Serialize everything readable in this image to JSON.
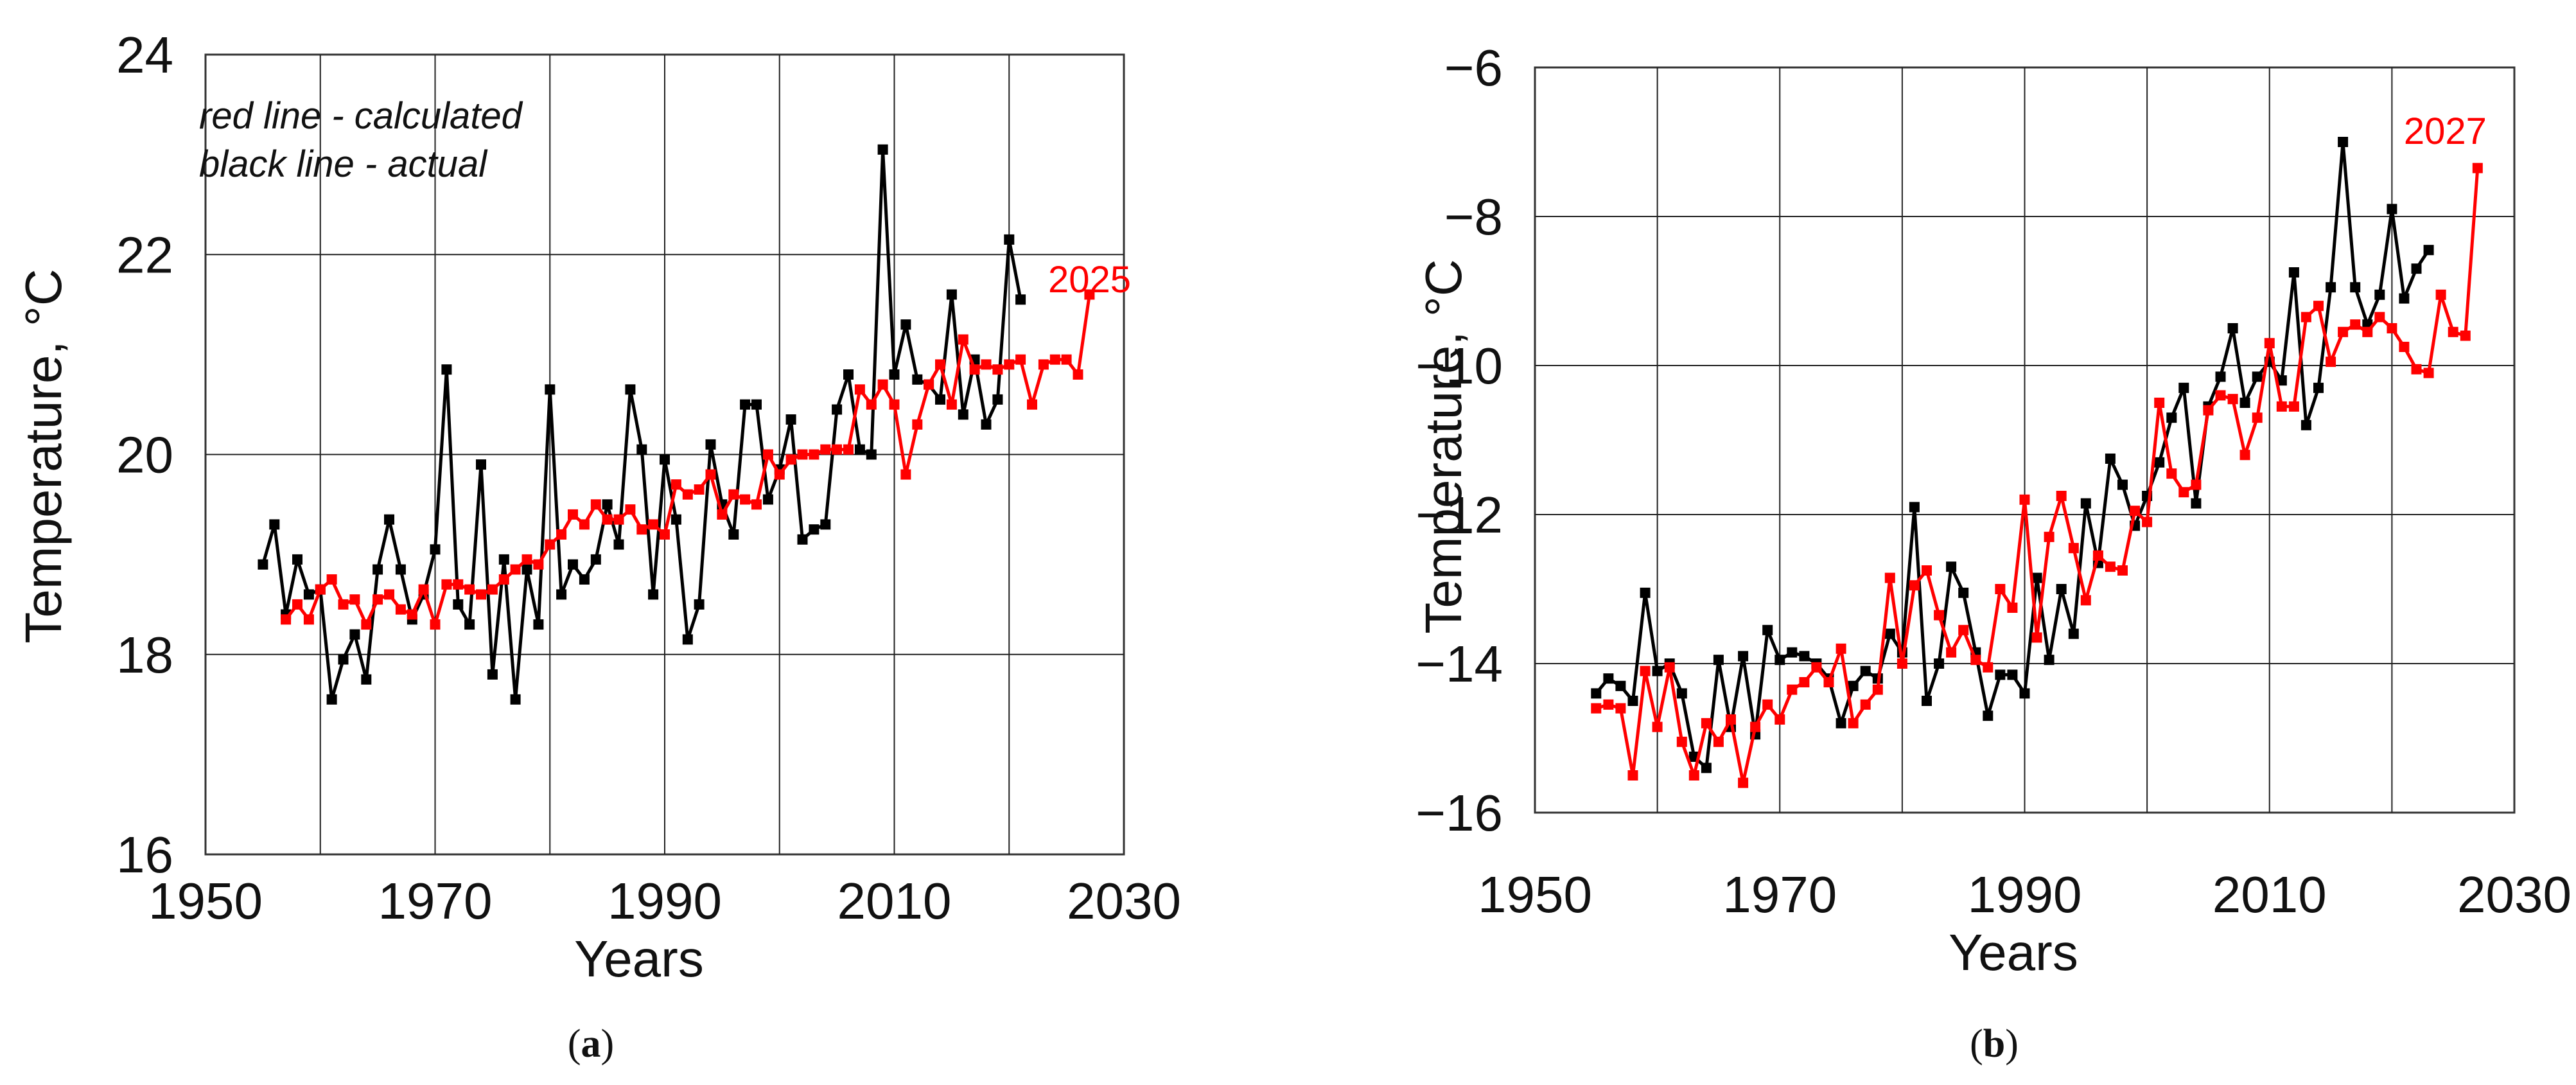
{
  "colors": {
    "calculated": "#ff0000",
    "actual": "#000000"
  },
  "chart_data": [
    {
      "type": "line",
      "panel": "a",
      "panel_label": "(a)",
      "title": "",
      "xlabel": "Years",
      "ylabel": "Temperature, °C",
      "xlim": [
        1950,
        2030
      ],
      "ylim": [
        16,
        24
      ],
      "xticks": [
        1950,
        1970,
        1990,
        2010,
        2030
      ],
      "yticks": [
        16,
        18,
        20,
        22,
        24
      ],
      "xgrid": [
        1960,
        1970,
        1980,
        1990,
        2000,
        2010,
        2020
      ],
      "ygrid": [
        18,
        20,
        22
      ],
      "annotation_lines": [
        "red line - calculated",
        "black line - actual"
      ],
      "end_label": "2025",
      "series": [
        {
          "name": "actual",
          "color": "#000000",
          "x": [
            1955,
            1956,
            1957,
            1958,
            1959,
            1960,
            1961,
            1962,
            1963,
            1964,
            1965,
            1966,
            1967,
            1968,
            1969,
            1970,
            1971,
            1972,
            1973,
            1974,
            1975,
            1976,
            1977,
            1978,
            1979,
            1980,
            1981,
            1982,
            1983,
            1984,
            1985,
            1986,
            1987,
            1988,
            1989,
            1990,
            1991,
            1992,
            1993,
            1994,
            1995,
            1996,
            1997,
            1998,
            1999,
            2000,
            2001,
            2002,
            2003,
            2004,
            2005,
            2006,
            2007,
            2008,
            2009,
            2010,
            2011,
            2012,
            2013,
            2014,
            2015,
            2016,
            2017,
            2018,
            2019,
            2020,
            2021,
            2022
          ],
          "y": [
            18.9,
            19.3,
            18.4,
            18.95,
            18.6,
            18.65,
            17.55,
            17.95,
            18.2,
            17.75,
            18.85,
            19.35,
            18.85,
            18.35,
            18.6,
            19.05,
            20.85,
            18.5,
            18.3,
            19.9,
            17.8,
            18.95,
            17.55,
            18.85,
            18.3,
            20.65,
            18.6,
            18.9,
            18.75,
            18.95,
            19.5,
            19.1,
            20.65,
            20.05,
            18.6,
            19.95,
            19.35,
            18.15,
            18.5,
            20.1,
            19.5,
            19.2,
            20.5,
            20.5,
            19.55,
            19.85,
            20.35,
            19.15,
            19.25,
            19.3,
            20.45,
            20.8,
            20.05,
            20.0,
            23.05,
            20.8,
            21.3,
            20.75,
            20.7,
            20.55,
            21.6,
            20.4,
            20.95,
            20.3,
            20.55,
            22.15,
            21.55,
            null
          ]
        },
        {
          "name": "calculated",
          "color": "#ff0000",
          "x": [
            1957,
            1958,
            1959,
            1960,
            1961,
            1962,
            1963,
            1964,
            1965,
            1966,
            1967,
            1968,
            1969,
            1970,
            1971,
            1972,
            1973,
            1974,
            1975,
            1976,
            1977,
            1978,
            1979,
            1980,
            1981,
            1982,
            1983,
            1984,
            1985,
            1986,
            1987,
            1988,
            1989,
            1990,
            1991,
            1992,
            1993,
            1994,
            1995,
            1996,
            1997,
            1998,
            1999,
            2000,
            2001,
            2002,
            2003,
            2004,
            2005,
            2006,
            2007,
            2008,
            2009,
            2010,
            2011,
            2012,
            2013,
            2014,
            2015,
            2016,
            2017,
            2018,
            2019,
            2020,
            2021,
            2022,
            2023,
            2024,
            2025,
            2026,
            2027
          ],
          "y": [
            18.35,
            18.5,
            18.35,
            18.65,
            18.75,
            18.5,
            18.55,
            18.3,
            18.55,
            18.6,
            18.45,
            18.4,
            18.65,
            18.3,
            18.7,
            18.7,
            18.65,
            18.6,
            18.65,
            18.75,
            18.85,
            18.95,
            18.9,
            19.1,
            19.2,
            19.4,
            19.3,
            19.5,
            19.35,
            19.35,
            19.45,
            19.25,
            19.3,
            19.2,
            19.7,
            19.6,
            19.65,
            19.8,
            19.4,
            19.6,
            19.55,
            19.5,
            20.0,
            19.8,
            19.95,
            20.0,
            20.0,
            20.05,
            20.05,
            20.05,
            20.65,
            20.5,
            20.7,
            20.5,
            19.8,
            20.3,
            20.7,
            20.9,
            20.5,
            21.15,
            20.85,
            20.9,
            20.85,
            20.9,
            20.95,
            20.5,
            20.9,
            20.95,
            20.95,
            20.8,
            21.6
          ]
        }
      ]
    },
    {
      "type": "line",
      "panel": "b",
      "panel_label": "(b)",
      "title": "",
      "xlabel": "Years",
      "ylabel": "Temperature, °C",
      "xlim": [
        1950,
        2030
      ],
      "ylim": [
        -16,
        -6
      ],
      "xticks": [
        1950,
        1970,
        1990,
        2010,
        2030
      ],
      "yticks": [
        -16,
        -14,
        -12,
        -10,
        -8,
        -6
      ],
      "xgrid": [
        1960,
        1970,
        1980,
        1990,
        2000,
        2010,
        2020
      ],
      "ygrid": [
        -14,
        -12,
        -10,
        -8
      ],
      "annotation_lines": [],
      "end_label": "2027",
      "series": [
        {
          "name": "actual",
          "color": "#000000",
          "x": [
            1955,
            1956,
            1957,
            1958,
            1959,
            1960,
            1961,
            1962,
            1963,
            1964,
            1965,
            1966,
            1967,
            1968,
            1969,
            1970,
            1971,
            1972,
            1973,
            1974,
            1975,
            1976,
            1977,
            1978,
            1979,
            1980,
            1981,
            1982,
            1983,
            1984,
            1985,
            1986,
            1987,
            1988,
            1989,
            1990,
            1991,
            1992,
            1993,
            1994,
            1995,
            1996,
            1997,
            1998,
            1999,
            2000,
            2001,
            2002,
            2003,
            2004,
            2005,
            2006,
            2007,
            2008,
            2009,
            2010,
            2011,
            2012,
            2013,
            2014,
            2015,
            2016,
            2017,
            2018,
            2019,
            2020,
            2021,
            2022,
            2023
          ],
          "y": [
            -14.4,
            -14.2,
            -14.3,
            -14.5,
            -13.05,
            -14.1,
            -14.0,
            -14.4,
            -15.25,
            -15.4,
            -13.95,
            -14.85,
            -13.9,
            -14.95,
            -13.55,
            -13.95,
            -13.85,
            -13.9,
            -14.0,
            -14.2,
            -14.8,
            -14.3,
            -14.1,
            -14.2,
            -13.6,
            -13.85,
            -11.9,
            -14.5,
            -14.0,
            -12.7,
            -13.05,
            -13.85,
            -14.7,
            -14.15,
            -14.15,
            -14.4,
            -12.85,
            -13.95,
            -13.0,
            -13.6,
            -11.85,
            -12.65,
            -11.25,
            -11.6,
            -12.15,
            -11.75,
            -11.3,
            -10.7,
            -10.3,
            -11.85,
            -10.55,
            -10.15,
            -9.5,
            -10.5,
            -10.15,
            -9.95,
            -10.2,
            -8.75,
            -10.8,
            -10.3,
            -8.95,
            -7.0,
            -8.95,
            -9.45,
            -9.05,
            -7.9,
            -9.1,
            -8.7,
            -8.45
          ]
        },
        {
          "name": "calculated",
          "color": "#ff0000",
          "x": [
            1955,
            1956,
            1957,
            1958,
            1959,
            1960,
            1961,
            1962,
            1963,
            1964,
            1965,
            1966,
            1967,
            1968,
            1969,
            1970,
            1971,
            1972,
            1973,
            1974,
            1975,
            1976,
            1977,
            1978,
            1979,
            1980,
            1981,
            1982,
            1983,
            1984,
            1985,
            1986,
            1987,
            1988,
            1989,
            1990,
            1991,
            1992,
            1993,
            1994,
            1995,
            1996,
            1997,
            1998,
            1999,
            2000,
            2001,
            2002,
            2003,
            2004,
            2005,
            2006,
            2007,
            2008,
            2009,
            2010,
            2011,
            2012,
            2013,
            2014,
            2015,
            2016,
            2017,
            2018,
            2019,
            2020,
            2021,
            2022,
            2023,
            2024,
            2025,
            2026,
            2027
          ],
          "y": [
            -14.6,
            -14.55,
            -14.6,
            -15.5,
            -14.1,
            -14.85,
            -14.05,
            -15.05,
            -15.5,
            -14.8,
            -15.05,
            -14.75,
            -15.6,
            -14.85,
            -14.55,
            -14.75,
            -14.35,
            -14.25,
            -14.05,
            -14.25,
            -13.8,
            -14.8,
            -14.55,
            -14.35,
            -12.85,
            -14.0,
            -12.95,
            -12.75,
            -13.35,
            -13.85,
            -13.55,
            -13.95,
            -14.05,
            -13.0,
            -13.25,
            -11.8,
            -13.65,
            -12.3,
            -11.75,
            -12.45,
            -13.15,
            -12.55,
            -12.7,
            -12.75,
            -11.95,
            -12.1,
            -10.5,
            -11.45,
            -11.7,
            -11.6,
            -10.6,
            -10.4,
            -10.45,
            -11.2,
            -10.7,
            -9.7,
            -10.55,
            -10.55,
            -9.35,
            -9.2,
            -9.95,
            -9.55,
            -9.45,
            -9.55,
            -9.35,
            -9.5,
            -9.75,
            -10.05,
            -10.1,
            -9.05,
            -9.55,
            -9.6,
            -7.35
          ]
        }
      ]
    }
  ]
}
